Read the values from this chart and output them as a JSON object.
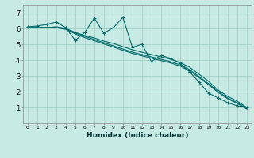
{
  "title": "",
  "xlabel": "Humidex (Indice chaleur)",
  "ylabel": "",
  "bg_color": "#c8eae4",
  "grid_color": "#9eccc4",
  "line_color": "#006b6b",
  "xlim": [
    -0.5,
    23.5
  ],
  "ylim": [
    0,
    7.5
  ],
  "xticks": [
    0,
    1,
    2,
    3,
    4,
    5,
    6,
    7,
    8,
    9,
    10,
    11,
    12,
    13,
    14,
    15,
    16,
    17,
    18,
    19,
    20,
    21,
    22,
    23
  ],
  "yticks": [
    1,
    2,
    3,
    4,
    5,
    6,
    7
  ],
  "line1_x": [
    0,
    1,
    2,
    3,
    4,
    5,
    6,
    7,
    8,
    9,
    10,
    11,
    12,
    13,
    14,
    15,
    16,
    17,
    18,
    19,
    20,
    21,
    22,
    23
  ],
  "line1_y": [
    6.1,
    6.15,
    6.25,
    6.4,
    6.05,
    5.25,
    5.75,
    6.65,
    5.7,
    6.05,
    6.7,
    4.8,
    5.0,
    3.9,
    4.3,
    4.1,
    3.8,
    3.25,
    2.6,
    1.9,
    1.6,
    1.3,
    1.1,
    1.0
  ],
  "line2_x": [
    0,
    1,
    2,
    3,
    4,
    5,
    6,
    7,
    8,
    9,
    10,
    11,
    12,
    13,
    14,
    15,
    16,
    17,
    18,
    19,
    20,
    21,
    22,
    23
  ],
  "line2_y": [
    6.05,
    6.05,
    6.05,
    6.1,
    6.0,
    5.75,
    5.55,
    5.4,
    5.2,
    5.05,
    4.85,
    4.65,
    4.5,
    4.35,
    4.2,
    4.05,
    3.85,
    3.55,
    3.1,
    2.65,
    2.1,
    1.7,
    1.4,
    1.0
  ],
  "line3_x": [
    0,
    1,
    2,
    3,
    4,
    5,
    6,
    7,
    8,
    9,
    10,
    11,
    12,
    13,
    14,
    15,
    16,
    17,
    18,
    19,
    20,
    21,
    22,
    23
  ],
  "line3_y": [
    6.05,
    6.05,
    6.05,
    6.05,
    5.95,
    5.7,
    5.5,
    5.3,
    5.1,
    4.9,
    4.7,
    4.5,
    4.35,
    4.2,
    4.05,
    3.9,
    3.7,
    3.4,
    2.95,
    2.5,
    2.0,
    1.6,
    1.3,
    0.95
  ],
  "line4_x": [
    0,
    1,
    2,
    3,
    4,
    5,
    6,
    7,
    8,
    9,
    10,
    11,
    12,
    13,
    14,
    15,
    16,
    17,
    18,
    19,
    20,
    21,
    22,
    23
  ],
  "line4_y": [
    6.05,
    6.05,
    6.05,
    6.05,
    5.95,
    5.65,
    5.42,
    5.22,
    5.02,
    4.82,
    4.62,
    4.42,
    4.27,
    4.12,
    3.97,
    3.82,
    3.62,
    3.32,
    2.88,
    2.44,
    1.95,
    1.55,
    1.25,
    0.9
  ],
  "marker": "+",
  "marker_size": 3.5,
  "linewidth": 0.8
}
